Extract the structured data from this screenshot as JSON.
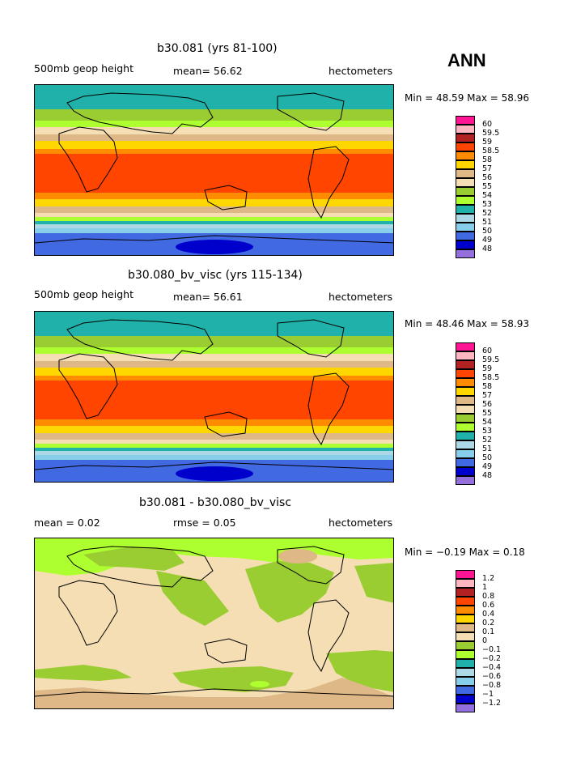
{
  "ann_label": "ANN",
  "panels": [
    {
      "title": "b30.081 (yrs 81-100)",
      "left_text": "500mb geop height",
      "mid_text": "mean=  56.62",
      "right_text": "hectometers",
      "minmax": "Min =   48.59  Max =   58.96",
      "legend": [
        "60",
        "59.5",
        "59",
        "58.5",
        "58",
        "57",
        "56",
        "55",
        "54",
        "53",
        "52",
        "51",
        "50",
        "49",
        "48"
      ]
    },
    {
      "title": "b30.080_bv_visc (yrs 115-134)",
      "left_text": "500mb geop height",
      "mid_text": "mean=  56.61",
      "right_text": "hectometers",
      "minmax": "Min =   48.46  Max =   58.93",
      "legend": [
        "60",
        "59.5",
        "59",
        "58.5",
        "58",
        "57",
        "56",
        "55",
        "54",
        "53",
        "52",
        "51",
        "50",
        "49",
        "48"
      ]
    },
    {
      "title": "b30.081 - b30.080_bv_visc",
      "left_text": "mean =    0.02",
      "mid_text": "rmse =    0.05",
      "right_text": "hectometers",
      "minmax": "Min =  −0.19  Max =    0.18",
      "legend": [
        "1.2",
        "1",
        "0.8",
        "0.6",
        "0.4",
        "0.2",
        "0.1",
        "0",
        "−0.1",
        "−0.2",
        "−0.4",
        "−0.6",
        "−0.8",
        "−1",
        "−1.2"
      ]
    }
  ],
  "legend_colors": [
    "#ff1493",
    "#ffb6c1",
    "#b22222",
    "#ff4500",
    "#ff8c00",
    "#ffd700",
    "#deb887",
    "#f5deb3",
    "#9acd32",
    "#adff2f",
    "#20b2aa",
    "#add8e6",
    "#87ceeb",
    "#4169e1",
    "#0000cd",
    "#9370db"
  ]
}
